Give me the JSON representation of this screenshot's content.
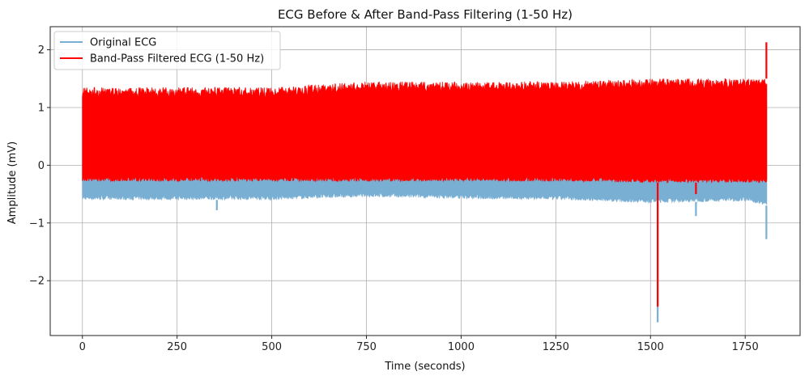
{
  "chart_data": {
    "type": "line",
    "title": "ECG Before & After Band-Pass Filtering (1-50 Hz)",
    "xlabel": "Time (seconds)",
    "ylabel": "Amplitude (mV)",
    "xlim": [
      -85,
      1895
    ],
    "ylim": [
      -2.95,
      2.4
    ],
    "xticks": [
      0,
      250,
      500,
      750,
      1000,
      1250,
      1500,
      1750
    ],
    "xtick_labels": [
      "0",
      "250",
      "500",
      "750",
      "1000",
      "1250",
      "1500",
      "1750"
    ],
    "yticks": [
      -2,
      -1,
      0,
      1,
      2
    ],
    "ytick_labels": [
      "−2",
      "−1",
      "0",
      "1",
      "2"
    ],
    "grid": true,
    "legend_position": "top-left",
    "series": [
      {
        "name": "Original ECG",
        "color": "#7aafd4",
        "x_range": [
          0,
          1807
        ],
        "upper_envelope": [
          {
            "x": 0,
            "y": 1.2
          },
          {
            "x": 250,
            "y": 1.15
          },
          {
            "x": 500,
            "y": 1.15
          },
          {
            "x": 750,
            "y": 1.2
          },
          {
            "x": 1000,
            "y": 1.15
          },
          {
            "x": 1250,
            "y": 1.2
          },
          {
            "x": 1500,
            "y": 1.2
          },
          {
            "x": 1750,
            "y": 1.2
          },
          {
            "x": 1807,
            "y": 1.2
          }
        ],
        "lower_envelope": [
          {
            "x": 0,
            "y": -0.6
          },
          {
            "x": 250,
            "y": -0.6
          },
          {
            "x": 500,
            "y": -0.6
          },
          {
            "x": 750,
            "y": -0.55
          },
          {
            "x": 1000,
            "y": -0.58
          },
          {
            "x": 1250,
            "y": -0.6
          },
          {
            "x": 1500,
            "y": -0.65
          },
          {
            "x": 1750,
            "y": -0.62
          },
          {
            "x": 1807,
            "y": -0.7
          }
        ],
        "spikes": [
          {
            "x": 355,
            "y": -0.78
          },
          {
            "x": 1519,
            "y": -2.72
          },
          {
            "x": 1620,
            "y": -0.88
          },
          {
            "x": 1806,
            "y": -1.28
          }
        ]
      },
      {
        "name": "Band-Pass Filtered ECG (1-50 Hz)",
        "color": "#ff0000",
        "x_range": [
          0,
          1807
        ],
        "upper_envelope": [
          {
            "x": 0,
            "y": 1.35
          },
          {
            "x": 250,
            "y": 1.35
          },
          {
            "x": 500,
            "y": 1.35
          },
          {
            "x": 750,
            "y": 1.45
          },
          {
            "x": 1000,
            "y": 1.45
          },
          {
            "x": 1250,
            "y": 1.45
          },
          {
            "x": 1500,
            "y": 1.5
          },
          {
            "x": 1750,
            "y": 1.5
          },
          {
            "x": 1807,
            "y": 1.5
          }
        ],
        "lower_envelope": [
          {
            "x": 0,
            "y": -0.28
          },
          {
            "x": 250,
            "y": -0.28
          },
          {
            "x": 500,
            "y": -0.28
          },
          {
            "x": 750,
            "y": -0.28
          },
          {
            "x": 1000,
            "y": -0.28
          },
          {
            "x": 1250,
            "y": -0.28
          },
          {
            "x": 1500,
            "y": -0.3
          },
          {
            "x": 1750,
            "y": -0.3
          },
          {
            "x": 1807,
            "y": -0.3
          }
        ],
        "spikes": [
          {
            "x": 1519,
            "y": -2.45
          },
          {
            "x": 1620,
            "y": -0.5
          },
          {
            "x": 1806,
            "y": 2.13
          }
        ]
      }
    ]
  }
}
